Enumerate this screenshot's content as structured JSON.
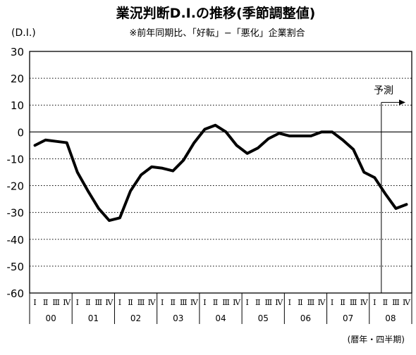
{
  "chart_data": {
    "type": "line",
    "title": "業況判断D.I.の推移(季節調整値)",
    "subtitle": "※前年同期比、「好転」−「悪化」企業割合",
    "ylabel": "(D.I.)",
    "xlabel": "(暦年・四半期)",
    "ylim": [
      -60,
      30
    ],
    "yticks": [
      30,
      20,
      10,
      0,
      -10,
      -20,
      -30,
      -40,
      -50,
      -60
    ],
    "grid": "horizontal dotted",
    "quarter_labels": [
      "Ⅰ",
      "Ⅱ",
      "Ⅲ",
      "Ⅳ"
    ],
    "years": [
      "00",
      "01",
      "02",
      "03",
      "04",
      "05",
      "06",
      "07",
      "08"
    ],
    "forecast_label": "予測",
    "forecast_start_index": 33,
    "series": [
      {
        "values": [
          -5,
          -3,
          -3.5,
          -4,
          -15,
          -22,
          -28.5,
          -33,
          -32,
          -22,
          -16,
          -13,
          -13.5,
          -14.5,
          -10.5,
          -4,
          1,
          2.5,
          0,
          -5,
          -8,
          -6,
          -2.5,
          -0.5,
          -1.5,
          -1.5,
          -1.5,
          0,
          0,
          -3,
          -6.5,
          -15,
          -17,
          -23,
          -28.5,
          -27
        ]
      }
    ]
  }
}
